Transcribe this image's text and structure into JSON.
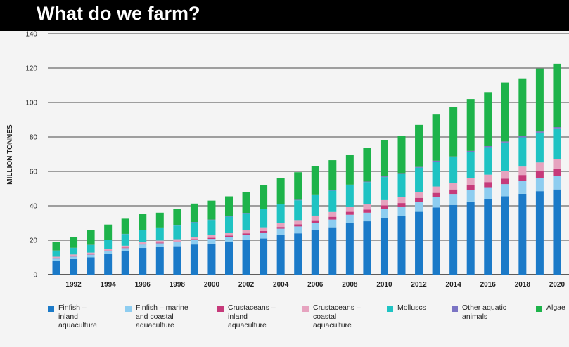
{
  "header": {
    "title": "What do we farm?"
  },
  "chart_data": {
    "type": "bar",
    "stacked": true,
    "title": "What do we farm?",
    "xlabel": "",
    "ylabel": "MILLION TONNES",
    "ylim": [
      0,
      140
    ],
    "yticks": [
      0,
      20,
      40,
      60,
      80,
      100,
      120,
      140
    ],
    "categories": [
      "1991",
      "1992",
      "1993",
      "1994",
      "1995",
      "1996",
      "1997",
      "1998",
      "1999",
      "2000",
      "2001",
      "2002",
      "2003",
      "2004",
      "2005",
      "2006",
      "2007",
      "2008",
      "2009",
      "2010",
      "2011",
      "2012",
      "2013",
      "2014",
      "2015",
      "2016",
      "2017",
      "2018",
      "2019",
      "2020"
    ],
    "xtick_labels": [
      "1992",
      "1994",
      "1996",
      "1998",
      "2000",
      "2002",
      "2004",
      "2006",
      "2008",
      "2010",
      "2012",
      "2014",
      "2016",
      "2018",
      "2020"
    ],
    "grid": true,
    "legend_position": "bottom",
    "series": [
      {
        "name": "Finfish – inland aquaculture",
        "color": "#1b7ac8",
        "values": [
          8,
          9,
          10,
          12,
          13.5,
          15.5,
          16,
          16.5,
          17.5,
          18,
          19,
          20,
          21,
          23,
          24,
          26,
          27.5,
          30,
          31,
          33,
          34,
          36.5,
          39,
          40.5,
          42.5,
          44,
          45.5,
          47,
          48.5,
          49.5
        ]
      },
      {
        "name": "Finfish – marine and coastal aquaculture",
        "color": "#8ecdf0",
        "values": [
          1.3,
          1.5,
          1.6,
          1.7,
          1.9,
          2,
          2.2,
          2.4,
          2.6,
          2.8,
          3,
          3.2,
          3.5,
          3.7,
          4,
          4.2,
          4.5,
          4.8,
          5,
          5.3,
          5.6,
          5.9,
          6.1,
          6.4,
          6.6,
          6.8,
          7.1,
          7.4,
          7.7,
          8
        ]
      },
      {
        "name": "Crustaceans – inland aquaculture",
        "color": "#c63a7a",
        "values": [
          0.2,
          0.2,
          0.2,
          0.3,
          0.3,
          0.3,
          0.4,
          0.4,
          0.5,
          0.6,
          0.7,
          0.8,
          0.9,
          1,
          1.2,
          1.4,
          1.6,
          1.7,
          1.8,
          1.9,
          2,
          2.2,
          2.4,
          2.6,
          2.8,
          3,
          3.2,
          3.5,
          3.8,
          4.2
        ]
      },
      {
        "name": "Crustaceans – coastal aquaculture",
        "color": "#e6a3bf",
        "values": [
          0.9,
          1,
          1,
          1.1,
          1.1,
          1.2,
          1.2,
          1.3,
          1.4,
          1.5,
          1.7,
          1.9,
          2.1,
          2.3,
          2.5,
          2.7,
          2.8,
          2.9,
          3,
          3.1,
          3.3,
          3.5,
          3.7,
          3.9,
          4.1,
          4.3,
          4.6,
          4.9,
          5.2,
          5.6
        ]
      },
      {
        "name": "Molluscs",
        "color": "#1fc3c3",
        "values": [
          3.5,
          3.8,
          4.4,
          5.2,
          6.8,
          7,
          7.5,
          7.9,
          8.4,
          8.9,
          9.3,
          9.8,
          10.5,
          11,
          11.5,
          12,
          12.4,
          12.6,
          13,
          13.4,
          13.7,
          14.1,
          14.5,
          14.8,
          15.4,
          16,
          16.4,
          17,
          17.3,
          17.7
        ]
      },
      {
        "name": "Other aquatic animals",
        "color": "#7b74c4",
        "values": [
          0.1,
          0.1,
          0.1,
          0.1,
          0.1,
          0.1,
          0.1,
          0.1,
          0.2,
          0.2,
          0.2,
          0.2,
          0.2,
          0.2,
          0.3,
          0.3,
          0.3,
          0.3,
          0.3,
          0.4,
          0.4,
          0.4,
          0.5,
          0.5,
          0.5,
          0.6,
          0.6,
          0.6,
          0.7,
          0.7
        ]
      },
      {
        "name": "Algae",
        "color": "#1db34a",
        "values": [
          5,
          6.4,
          8.5,
          8.7,
          8.8,
          9,
          8.6,
          9.4,
          10.7,
          11,
          11.6,
          12.2,
          13.8,
          14.8,
          16,
          16.4,
          17.4,
          17.5,
          19.5,
          20.9,
          21.8,
          24.4,
          26.8,
          28.8,
          30.1,
          31.3,
          34.2,
          33.6,
          36.5,
          36.8
        ]
      }
    ]
  },
  "legend": {
    "items": [
      {
        "label": "Finfish –\ninland\naquaculture",
        "color": "#1b7ac8"
      },
      {
        "label": "Finfish – marine\nand coastal\naquaculture",
        "color": "#8ecdf0"
      },
      {
        "label": "Crustaceans –\ninland\naquaculture",
        "color": "#c63a7a"
      },
      {
        "label": "Crustaceans –\ncoastal\naquaculture",
        "color": "#e6a3bf"
      },
      {
        "label": "Molluscs",
        "color": "#1fc3c3"
      },
      {
        "label": "Other aquatic\nanimals",
        "color": "#7b74c4"
      },
      {
        "label": "Algae",
        "color": "#1db34a"
      }
    ]
  }
}
